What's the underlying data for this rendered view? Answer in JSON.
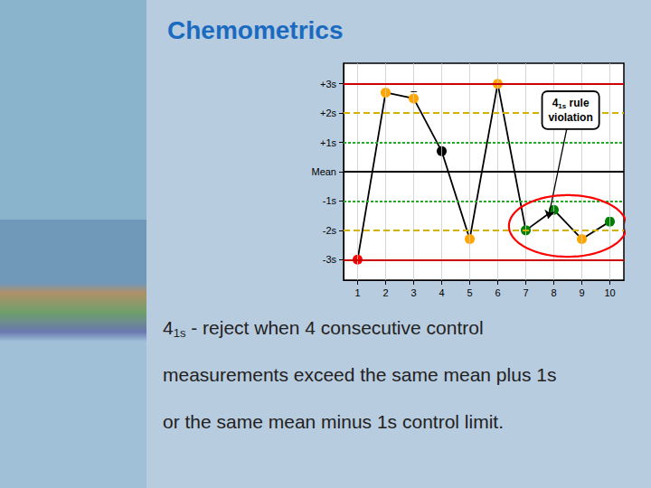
{
  "chart_data": {
    "type": "line",
    "title": "Chemometrics",
    "x": [
      1,
      2,
      3,
      4,
      5,
      6,
      7,
      8,
      9,
      10
    ],
    "values": [
      -3.0,
      2.7,
      2.5,
      0.7,
      -2.3,
      3.0,
      -2.0,
      -1.3,
      -2.3,
      -1.7
    ],
    "color": "#000000",
    "colors": [
      "red",
      "orange",
      "orange",
      "black",
      "orange",
      "orange",
      "green",
      "green",
      "orange",
      "green"
    ],
    "marker": "circle",
    "xlim": [
      0.5,
      10.5
    ],
    "xticks": [
      1,
      2,
      3,
      4,
      5,
      6,
      7,
      8,
      9,
      10
    ],
    "ylim": [
      -3.7,
      3.7
    ],
    "yticks": [
      {
        "value": 3,
        "label": "+3s"
      },
      {
        "value": 2,
        "label": "+2s"
      },
      {
        "value": 1,
        "label": "+1s"
      },
      {
        "value": 0,
        "label": "Mean"
      },
      {
        "value": -1,
        "label": "-1s"
      },
      {
        "value": -2,
        "label": "-2s"
      },
      {
        "value": -3,
        "label": "-3s"
      }
    ],
    "grid": true,
    "reference_lines": [
      {
        "y": 3,
        "color": "#cc0000",
        "line_style": "solid"
      },
      {
        "y": -3,
        "color": "#cc0000",
        "line_style": "solid"
      },
      {
        "y": 2,
        "color": "#d4b000",
        "line_style": "dashed"
      },
      {
        "y": -2,
        "color": "#d4b000",
        "line_style": "dashed"
      },
      {
        "y": 1,
        "color": "#22aa22",
        "line_style": "dotted"
      },
      {
        "y": -1,
        "color": "#22aa22",
        "line_style": "dotted"
      },
      {
        "y": 0,
        "color": "#000000",
        "line_style": "solid"
      }
    ],
    "highlight": {
      "shape": "ellipse",
      "center": [
        8.5,
        -1.85
      ],
      "width": 4.2,
      "height": 2.1,
      "color": "red"
    },
    "annotations": [
      {
        "text": "4",
        "subscript": "1s",
        "text_after": " rule\nviolation",
        "xy": [
          7.8,
          -1.6
        ],
        "xytext": [
          8.6,
          2.1
        ]
      },
      {
        "text": "–",
        "x": 3,
        "y": 2.75
      }
    ],
    "description": {
      "lead": "4",
      "subscript": "1s",
      "lines": [
        " - reject when 4 consecutive control",
        "measurements exceed the same mean plus 1s",
        "or the same mean minus 1s control limit."
      ]
    }
  }
}
